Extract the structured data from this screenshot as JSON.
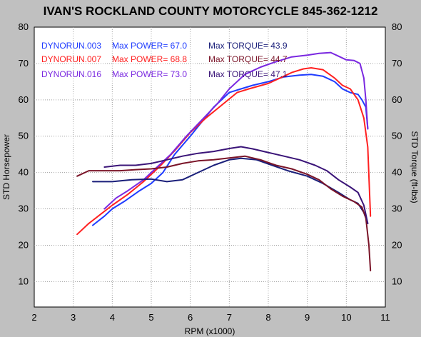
{
  "colors": {
    "background": "#c0c0c0",
    "plot_background": "#ffffff",
    "run_003": "#1f3cff",
    "run_007": "#ff2020",
    "run_016": "#7a28e0",
    "torque_003": "#1a1f7a",
    "torque_007": "#7a1428",
    "torque_016": "#3a1478"
  },
  "chart_data": {
    "type": "line",
    "title": "IVAN'S ROCKLAND COUNTY MOTORCYCLE 845-362-1212",
    "xlabel": "RPM (x1000)",
    "ylabel_left": "STD Horsepower",
    "ylabel_right": "STD Torque (ft-lbs)",
    "xlim": [
      2,
      11
    ],
    "ylim": [
      3,
      80
    ],
    "xticks": [
      "2",
      "3",
      "4",
      "5",
      "6",
      "7",
      "8",
      "9",
      "10",
      "11"
    ],
    "yticks": [
      "10",
      "20",
      "30",
      "40",
      "50",
      "60",
      "70",
      "80"
    ],
    "xtick_values": [
      2,
      3,
      4,
      5,
      6,
      7,
      8,
      9,
      10,
      11
    ],
    "ytick_values": [
      10,
      20,
      30,
      40,
      50,
      60,
      70,
      80
    ],
    "grid": true,
    "legend": [
      {
        "run": "DYNORUN.003",
        "power": "Max POWER= 67.0",
        "torque": "Max TORQUE= 43.9",
        "color": "#1f3cff"
      },
      {
        "run": "DYNORUN.007",
        "power": "Max POWER= 68.8",
        "torque": "Max TORQUE= 44.7",
        "color": "#ff2020"
      },
      {
        "run": "DYNORUN.016",
        "power": "Max POWER= 73.0",
        "torque": "Max TORQUE= 47.1",
        "color": "#7a28e0"
      }
    ],
    "series": [
      {
        "kind": "power",
        "color": "#1f3cff",
        "points": [
          [
            3.5,
            25.5
          ],
          [
            3.8,
            28
          ],
          [
            4.0,
            30
          ],
          [
            4.3,
            32
          ],
          [
            4.7,
            35
          ],
          [
            5.0,
            37
          ],
          [
            5.3,
            40
          ],
          [
            5.6,
            45
          ],
          [
            6.0,
            50
          ],
          [
            6.3,
            54
          ],
          [
            6.6,
            58
          ],
          [
            7.0,
            62
          ],
          [
            7.3,
            63
          ],
          [
            7.6,
            64
          ],
          [
            8.0,
            65
          ],
          [
            8.4,
            66.3
          ],
          [
            8.8,
            66.8
          ],
          [
            9.1,
            67
          ],
          [
            9.4,
            66.5
          ],
          [
            9.7,
            65
          ],
          [
            9.9,
            63
          ],
          [
            10.1,
            62
          ],
          [
            10.3,
            61.5
          ],
          [
            10.4,
            60
          ],
          [
            10.5,
            58
          ],
          [
            10.55,
            52
          ]
        ]
      },
      {
        "kind": "power",
        "color": "#ff2020",
        "points": [
          [
            3.1,
            23
          ],
          [
            3.4,
            26
          ],
          [
            3.7,
            28.5
          ],
          [
            4.0,
            31
          ],
          [
            4.4,
            34
          ],
          [
            4.8,
            37.5
          ],
          [
            5.2,
            41.5
          ],
          [
            5.6,
            46
          ],
          [
            6.0,
            51
          ],
          [
            6.4,
            55
          ],
          [
            6.8,
            58.5
          ],
          [
            7.2,
            62
          ],
          [
            7.5,
            63
          ],
          [
            8.0,
            64.5
          ],
          [
            8.3,
            66
          ],
          [
            8.6,
            67.5
          ],
          [
            8.9,
            68.5
          ],
          [
            9.1,
            68.8
          ],
          [
            9.4,
            68.3
          ],
          [
            9.7,
            66
          ],
          [
            9.9,
            64
          ],
          [
            10.1,
            63
          ],
          [
            10.3,
            60
          ],
          [
            10.45,
            55
          ],
          [
            10.55,
            47
          ],
          [
            10.62,
            28
          ]
        ]
      },
      {
        "kind": "power",
        "color": "#7a28e0",
        "points": [
          [
            3.8,
            30
          ],
          [
            4.1,
            33
          ],
          [
            4.4,
            35
          ],
          [
            4.8,
            38
          ],
          [
            5.1,
            41
          ],
          [
            5.5,
            45
          ],
          [
            5.9,
            50
          ],
          [
            6.3,
            54.5
          ],
          [
            6.7,
            59
          ],
          [
            7.0,
            63
          ],
          [
            7.4,
            67
          ],
          [
            7.8,
            69
          ],
          [
            8.2,
            70.5
          ],
          [
            8.6,
            71.8
          ],
          [
            9.0,
            72.3
          ],
          [
            9.3,
            72.8
          ],
          [
            9.6,
            73
          ],
          [
            9.8,
            72
          ],
          [
            10.0,
            71
          ],
          [
            10.2,
            70.8
          ],
          [
            10.35,
            70
          ],
          [
            10.45,
            66
          ],
          [
            10.5,
            60
          ],
          [
            10.55,
            52
          ]
        ]
      },
      {
        "kind": "torque",
        "color": "#1a1f7a",
        "points": [
          [
            3.5,
            37.5
          ],
          [
            4.0,
            37.5
          ],
          [
            4.5,
            38
          ],
          [
            5.0,
            38.2
          ],
          [
            5.4,
            37.5
          ],
          [
            5.8,
            38
          ],
          [
            6.2,
            40
          ],
          [
            6.6,
            42
          ],
          [
            7.0,
            43.5
          ],
          [
            7.3,
            43.9
          ],
          [
            7.7,
            43.5
          ],
          [
            8.1,
            42
          ],
          [
            8.5,
            40.5
          ],
          [
            9.0,
            39
          ],
          [
            9.4,
            37
          ],
          [
            9.8,
            34.5
          ],
          [
            10.1,
            32.5
          ],
          [
            10.3,
            31.5
          ],
          [
            10.45,
            29
          ],
          [
            10.55,
            26
          ]
        ]
      },
      {
        "kind": "torque",
        "color": "#7a1428",
        "points": [
          [
            3.1,
            39
          ],
          [
            3.4,
            40.5
          ],
          [
            3.8,
            40.5
          ],
          [
            4.2,
            40.5
          ],
          [
            4.6,
            40.8
          ],
          [
            5.0,
            41
          ],
          [
            5.4,
            41.5
          ],
          [
            5.8,
            42.5
          ],
          [
            6.2,
            43.2
          ],
          [
            6.6,
            43.5
          ],
          [
            7.0,
            44
          ],
          [
            7.4,
            44.5
          ],
          [
            7.8,
            43.5
          ],
          [
            8.2,
            42
          ],
          [
            8.6,
            41
          ],
          [
            9.0,
            39.5
          ],
          [
            9.3,
            38
          ],
          [
            9.6,
            35.5
          ],
          [
            9.9,
            33.5
          ],
          [
            10.2,
            32
          ],
          [
            10.4,
            30.5
          ],
          [
            10.5,
            27.5
          ],
          [
            10.58,
            20
          ],
          [
            10.62,
            13
          ]
        ]
      },
      {
        "kind": "torque",
        "color": "#3a1478",
        "points": [
          [
            3.8,
            41.5
          ],
          [
            4.2,
            42
          ],
          [
            4.6,
            42
          ],
          [
            5.0,
            42.5
          ],
          [
            5.4,
            43.5
          ],
          [
            5.8,
            44.5
          ],
          [
            6.2,
            45.3
          ],
          [
            6.6,
            45.8
          ],
          [
            7.0,
            46.6
          ],
          [
            7.3,
            47.1
          ],
          [
            7.6,
            46.5
          ],
          [
            8.0,
            45.5
          ],
          [
            8.4,
            44.5
          ],
          [
            8.8,
            43.5
          ],
          [
            9.2,
            42
          ],
          [
            9.5,
            40.5
          ],
          [
            9.8,
            38
          ],
          [
            10.1,
            36
          ],
          [
            10.3,
            34.5
          ],
          [
            10.45,
            31
          ],
          [
            10.55,
            26
          ]
        ]
      }
    ]
  }
}
